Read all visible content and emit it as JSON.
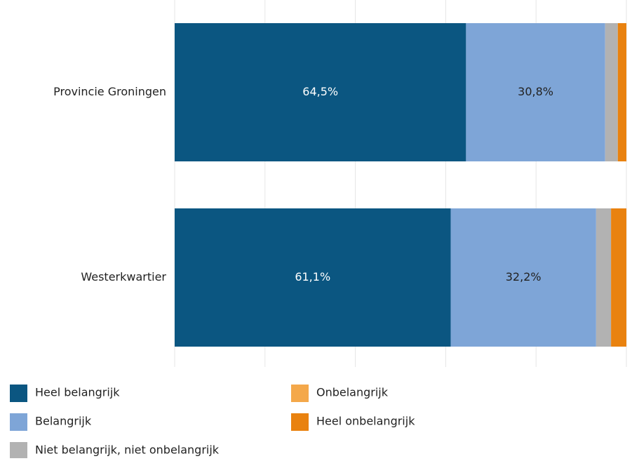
{
  "chart_data": {
    "type": "stacked-barh",
    "categories": [
      "Provincie Groningen",
      "Westerkwartier"
    ],
    "series": [
      {
        "name": "Heel belangrijk",
        "color": "#0b5681",
        "values": [
          64.5,
          61.1
        ],
        "value_labels": [
          "64,5%",
          "61,1%"
        ]
      },
      {
        "name": "Belangrijk",
        "color": "#7ea5d7",
        "values": [
          30.8,
          32.2
        ],
        "value_labels": [
          "30,8%",
          "32,2%"
        ]
      },
      {
        "name": "Niet belangrijk, niet onbelangrijk",
        "color": "#b2b2b2",
        "values": [
          2.8,
          3.3
        ],
        "value_labels": [
          null,
          null
        ]
      },
      {
        "name": "Onbelangrijk",
        "color": "#f4a84a",
        "values": [
          0,
          0
        ],
        "value_labels": [
          null,
          null
        ]
      },
      {
        "name": "Heel onbelangrijk",
        "color": "#e9820f",
        "values": [
          1.9,
          3.4
        ],
        "value_labels": [
          null,
          null
        ]
      }
    ],
    "xlim": [
      0,
      100
    ],
    "xticks": [
      0,
      20,
      40,
      60,
      80,
      100
    ],
    "grid": true
  }
}
